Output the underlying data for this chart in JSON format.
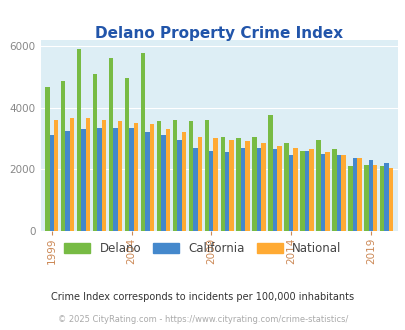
{
  "title": "Delano Property Crime Index",
  "years": [
    1999,
    2000,
    2001,
    2002,
    2003,
    2004,
    2005,
    2006,
    2007,
    2008,
    2009,
    2010,
    2011,
    2012,
    2013,
    2014,
    2015,
    2016,
    2017,
    2018,
    2019,
    2020
  ],
  "delano": [
    4650,
    4850,
    5900,
    5100,
    5600,
    4950,
    5750,
    3550,
    3600,
    3550,
    3600,
    3050,
    3000,
    3050,
    3750,
    2850,
    2600,
    2950,
    2650,
    2100,
    2150,
    2100
  ],
  "california": [
    3100,
    3250,
    3300,
    3350,
    3350,
    3350,
    3200,
    3100,
    2950,
    2700,
    2600,
    2550,
    2700,
    2700,
    2650,
    2450,
    2600,
    2500,
    2450,
    2350,
    2300,
    2200
  ],
  "national": [
    3600,
    3650,
    3650,
    3600,
    3550,
    3500,
    3450,
    3300,
    3200,
    3050,
    3000,
    2950,
    2900,
    2850,
    2750,
    2700,
    2650,
    2550,
    2450,
    2350,
    2150,
    2050
  ],
  "delano_color": "#77bb44",
  "california_color": "#4488cc",
  "national_color": "#ffaa33",
  "bg_color": "#ddeef5",
  "ylim": [
    0,
    6200
  ],
  "yticks": [
    0,
    2000,
    4000,
    6000
  ],
  "subtitle": "Crime Index corresponds to incidents per 100,000 inhabitants",
  "footer": "© 2025 CityRating.com - https://www.cityrating.com/crime-statistics/",
  "xlabel_years": [
    1999,
    2004,
    2009,
    2014,
    2019
  ],
  "title_color": "#2255aa",
  "xtick_color": "#cc8855",
  "ytick_color": "#888888",
  "subtitle_color": "#333333",
  "footer_color": "#aaaaaa"
}
